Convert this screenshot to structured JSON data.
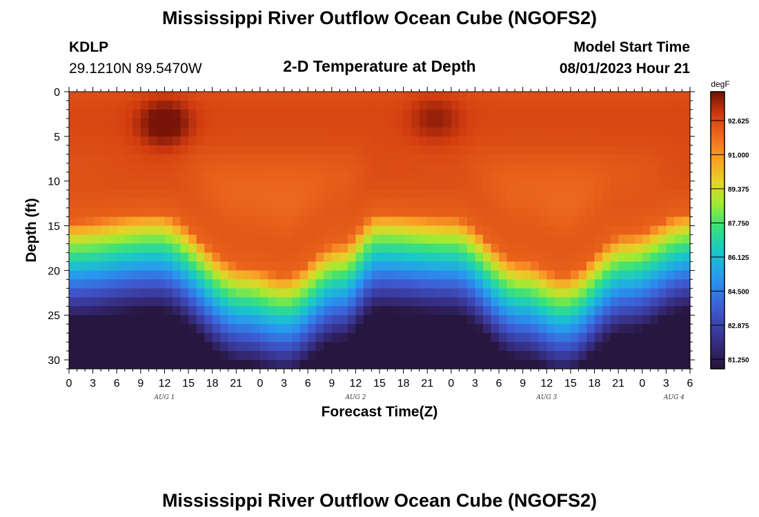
{
  "title": "Mississippi River Outflow Ocean Cube (NGOFS2)",
  "station": {
    "id": "KDLP",
    "coords": "29.1210N  89.5470W"
  },
  "subtitle": "2-D Temperature at Depth",
  "model_start": {
    "label": "Model Start Time",
    "value": "08/01/2023 Hour 21"
  },
  "footer_title": "Mississippi River Outflow Ocean Cube (NGOFS2)",
  "chart_data": {
    "type": "heatmap",
    "title": "2-D Temperature at Depth",
    "xlabel": "Forecast Time(Z)",
    "ylabel": "Depth (ft)",
    "x_range_hours": [
      0,
      78
    ],
    "x_ticks": [
      {
        "h": 0,
        "label": "0"
      },
      {
        "h": 3,
        "label": "3"
      },
      {
        "h": 6,
        "label": "6"
      },
      {
        "h": 9,
        "label": "9"
      },
      {
        "h": 12,
        "label": "12"
      },
      {
        "h": 15,
        "label": "15"
      },
      {
        "h": 18,
        "label": "18"
      },
      {
        "h": 21,
        "label": "21"
      },
      {
        "h": 24,
        "label": "0"
      },
      {
        "h": 27,
        "label": "3"
      },
      {
        "h": 30,
        "label": "6"
      },
      {
        "h": 33,
        "label": "9"
      },
      {
        "h": 36,
        "label": "12"
      },
      {
        "h": 39,
        "label": "15"
      },
      {
        "h": 42,
        "label": "18"
      },
      {
        "h": 45,
        "label": "21"
      },
      {
        "h": 48,
        "label": "0"
      },
      {
        "h": 51,
        "label": "3"
      },
      {
        "h": 54,
        "label": "6"
      },
      {
        "h": 57,
        "label": "9"
      },
      {
        "h": 60,
        "label": "12"
      },
      {
        "h": 63,
        "label": "15"
      },
      {
        "h": 66,
        "label": "18"
      },
      {
        "h": 69,
        "label": "21"
      },
      {
        "h": 72,
        "label": "0"
      },
      {
        "h": 75,
        "label": "3"
      },
      {
        "h": 78,
        "label": "6"
      }
    ],
    "day_labels": [
      {
        "h": 12,
        "label": "AUG 1"
      },
      {
        "h": 36,
        "label": "AUG 2"
      },
      {
        "h": 60,
        "label": "AUG 3"
      },
      {
        "h": 76,
        "label": "AUG 4"
      }
    ],
    "y_range_ft": [
      0,
      31
    ],
    "y_ticks": [
      0,
      5,
      10,
      15,
      20,
      25,
      30
    ],
    "colorbar": {
      "unit": "degF",
      "min": 80.8,
      "max": 94.0,
      "ticks": [
        "92.625",
        "91.000",
        "89.375",
        "87.750",
        "86.125",
        "84.500",
        "82.875",
        "81.250"
      ]
    },
    "thermocline_depth_ft": [
      {
        "h": 0,
        "depth": 14.5
      },
      {
        "h": 11,
        "depth": 13.5
      },
      {
        "h": 22,
        "depth": 19.5
      },
      {
        "h": 27,
        "depth": 20.5
      },
      {
        "h": 34,
        "depth": 17.0
      },
      {
        "h": 39,
        "depth": 13.5
      },
      {
        "h": 48,
        "depth": 14.0
      },
      {
        "h": 57,
        "depth": 19.0
      },
      {
        "h": 62,
        "depth": 20.5
      },
      {
        "h": 70,
        "depth": 16.0
      },
      {
        "h": 78,
        "depth": 13.5
      }
    ],
    "hot_spots": [
      {
        "h": 12,
        "depth": 3.5,
        "value": 94.0
      },
      {
        "h": 46,
        "depth": 3.0,
        "value": 93.2
      }
    ],
    "surface_temp_degF": 92.2,
    "bottom_temp_degF": 81.0
  }
}
